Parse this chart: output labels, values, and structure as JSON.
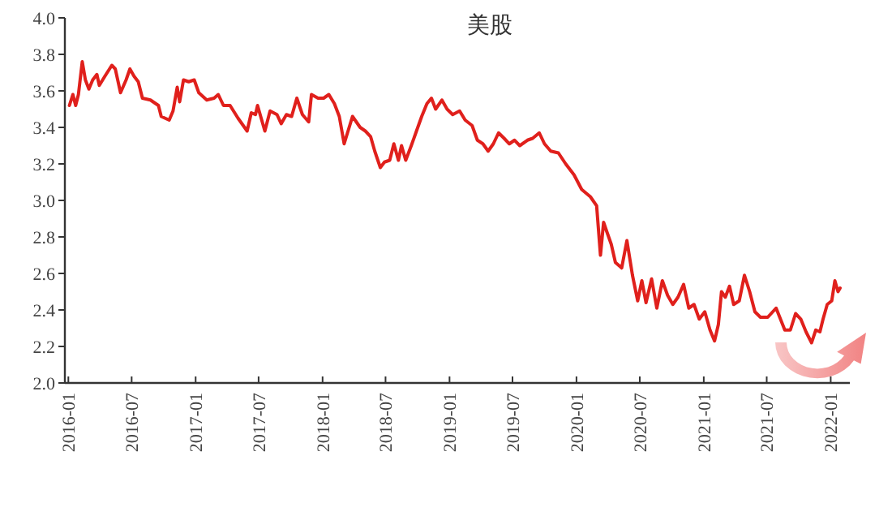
{
  "chart_data": {
    "type": "line",
    "title": "美股",
    "x": [
      "2016-01-04",
      "2016-01-14",
      "2016-01-22",
      "2016-01-30",
      "2016-02-10",
      "2016-02-19",
      "2016-02-29",
      "2016-03-11",
      "2016-03-23",
      "2016-03-30",
      "2016-04-15",
      "2016-05-05",
      "2016-05-15",
      "2016-05-30",
      "2016-06-15",
      "2016-06-26",
      "2016-07-08",
      "2016-07-20",
      "2016-08-01",
      "2016-08-24",
      "2016-09-16",
      "2016-09-24",
      "2016-10-17",
      "2016-10-28",
      "2016-11-09",
      "2016-11-16",
      "2016-11-27",
      "2016-12-12",
      "2016-12-28",
      "2017-01-10",
      "2017-02-02",
      "2017-02-23",
      "2017-03-07",
      "2017-03-22",
      "2017-04-10",
      "2017-05-03",
      "2017-05-29",
      "2017-06-10",
      "2017-06-22",
      "2017-06-28",
      "2017-07-19",
      "2017-08-03",
      "2017-08-23",
      "2017-09-04",
      "2017-09-19",
      "2017-10-04",
      "2017-10-19",
      "2017-11-04",
      "2017-11-22",
      "2017-11-30",
      "2017-12-19",
      "2018-01-04",
      "2018-01-19",
      "2018-02-04",
      "2018-02-18",
      "2018-03-04",
      "2018-03-28",
      "2018-04-19",
      "2018-05-04",
      "2018-05-19",
      "2018-05-31",
      "2018-06-16",
      "2018-06-28",
      "2018-07-13",
      "2018-07-25",
      "2018-08-07",
      "2018-08-16",
      "2018-08-28",
      "2018-09-13",
      "2018-09-28",
      "2018-10-13",
      "2018-10-28",
      "2018-11-10",
      "2018-11-22",
      "2018-12-10",
      "2018-12-25",
      "2019-01-10",
      "2019-01-30",
      "2019-02-15",
      "2019-03-07",
      "2019-03-22",
      "2019-04-07",
      "2019-04-22",
      "2019-05-07",
      "2019-05-22",
      "2019-06-07",
      "2019-06-22",
      "2019-07-07",
      "2019-07-22",
      "2019-08-13",
      "2019-08-28",
      "2019-09-16",
      "2019-10-01",
      "2019-10-19",
      "2019-11-10",
      "2019-12-01",
      "2019-12-25",
      "2020-01-16",
      "2020-02-10",
      "2020-02-28",
      "2020-03-10",
      "2020-03-19",
      "2020-03-28",
      "2020-04-10",
      "2020-04-22",
      "2020-05-10",
      "2020-05-25",
      "2020-06-10",
      "2020-06-25",
      "2020-07-07",
      "2020-07-19",
      "2020-08-04",
      "2020-08-19",
      "2020-09-04",
      "2020-09-19",
      "2020-10-04",
      "2020-10-19",
      "2020-11-04",
      "2020-11-19",
      "2020-12-04",
      "2020-12-19",
      "2021-01-04",
      "2021-01-19",
      "2021-02-01",
      "2021-02-12",
      "2021-02-21",
      "2021-03-04",
      "2021-03-16",
      "2021-03-28",
      "2021-04-13",
      "2021-04-28",
      "2021-05-13",
      "2021-05-28",
      "2021-06-13",
      "2021-07-04",
      "2021-07-28",
      "2021-08-22",
      "2021-09-07",
      "2021-09-22",
      "2021-10-07",
      "2021-10-22",
      "2021-11-07",
      "2021-11-19",
      "2021-12-01",
      "2021-12-10",
      "2021-12-22",
      "2022-01-04",
      "2022-01-13",
      "2022-01-22",
      "2022-01-28"
    ],
    "series": [
      {
        "color": "#e0201c",
        "values": [
          3.52,
          3.58,
          3.52,
          3.58,
          3.76,
          3.66,
          3.61,
          3.66,
          3.69,
          3.63,
          3.68,
          3.74,
          3.72,
          3.59,
          3.66,
          3.72,
          3.68,
          3.65,
          3.56,
          3.55,
          3.52,
          3.46,
          3.44,
          3.49,
          3.62,
          3.54,
          3.66,
          3.65,
          3.66,
          3.59,
          3.55,
          3.56,
          3.58,
          3.52,
          3.52,
          3.45,
          3.38,
          3.48,
          3.47,
          3.52,
          3.38,
          3.49,
          3.47,
          3.42,
          3.47,
          3.46,
          3.56,
          3.47,
          3.43,
          3.58,
          3.56,
          3.56,
          3.58,
          3.53,
          3.46,
          3.31,
          3.46,
          3.4,
          3.38,
          3.35,
          3.27,
          3.18,
          3.21,
          3.22,
          3.31,
          3.22,
          3.3,
          3.22,
          3.3,
          3.38,
          3.46,
          3.53,
          3.56,
          3.5,
          3.55,
          3.5,
          3.47,
          3.49,
          3.44,
          3.41,
          3.33,
          3.31,
          3.27,
          3.31,
          3.37,
          3.34,
          3.31,
          3.33,
          3.3,
          3.33,
          3.34,
          3.37,
          3.31,
          3.27,
          3.26,
          3.2,
          3.14,
          3.06,
          3.02,
          2.97,
          2.7,
          2.88,
          2.83,
          2.76,
          2.66,
          2.63,
          2.78,
          2.59,
          2.45,
          2.56,
          2.44,
          2.57,
          2.41,
          2.56,
          2.48,
          2.43,
          2.47,
          2.54,
          2.41,
          2.43,
          2.35,
          2.39,
          2.29,
          2.23,
          2.32,
          2.5,
          2.47,
          2.53,
          2.43,
          2.45,
          2.59,
          2.5,
          2.39,
          2.36,
          2.36,
          2.41,
          2.29,
          2.29,
          2.38,
          2.35,
          2.28,
          2.22,
          2.29,
          2.28,
          2.35,
          2.43,
          2.45,
          2.56,
          2.5,
          2.52
        ]
      }
    ],
    "xlim": [
      "2015-12-22",
      "2022-02-25"
    ],
    "xticks": [
      "2016-01",
      "2016-07",
      "2017-01",
      "2017-07",
      "2018-01",
      "2018-07",
      "2019-01",
      "2019-07",
      "2020-01",
      "2020-07",
      "2021-01",
      "2021-07",
      "2022-01"
    ],
    "ylim": [
      2.0,
      4.0
    ],
    "yticks": [
      {
        "value": 2.0,
        "label": "2.0"
      },
      {
        "value": 2.2,
        "label": "2.2"
      },
      {
        "value": 2.4,
        "label": "2.4"
      },
      {
        "value": 2.6,
        "label": "2.6"
      },
      {
        "value": 2.8,
        "label": "2.8"
      },
      {
        "value": 3.0,
        "label": "3.0"
      },
      {
        "value": 3.2,
        "label": "3.2"
      },
      {
        "value": 3.4,
        "label": "3.4"
      },
      {
        "value": 3.6,
        "label": "3.6"
      },
      {
        "value": 3.8,
        "label": "3.8"
      },
      {
        "value": 4.0,
        "label": "4.0"
      }
    ]
  }
}
